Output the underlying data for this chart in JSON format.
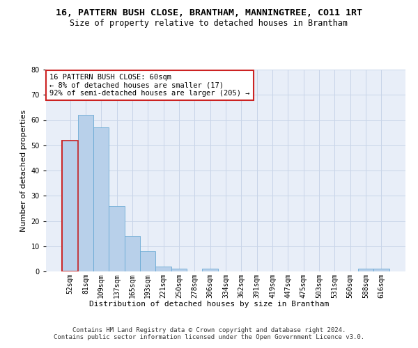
{
  "title_line1": "16, PATTERN BUSH CLOSE, BRANTHAM, MANNINGTREE, CO11 1RT",
  "title_line2": "Size of property relative to detached houses in Brantham",
  "xlabel": "Distribution of detached houses by size in Brantham",
  "ylabel": "Number of detached properties",
  "categories": [
    "52sqm",
    "81sqm",
    "109sqm",
    "137sqm",
    "165sqm",
    "193sqm",
    "221sqm",
    "250sqm",
    "278sqm",
    "306sqm",
    "334sqm",
    "362sqm",
    "391sqm",
    "419sqm",
    "447sqm",
    "475sqm",
    "503sqm",
    "531sqm",
    "560sqm",
    "588sqm",
    "616sqm"
  ],
  "values": [
    52,
    62,
    57,
    26,
    14,
    8,
    2,
    1,
    0,
    1,
    0,
    0,
    0,
    0,
    0,
    0,
    0,
    0,
    0,
    1,
    1
  ],
  "bar_color": "#b8d0ea",
  "bar_edgecolor": "#6aaad4",
  "annotation_box_text": "16 PATTERN BUSH CLOSE: 60sqm\n← 8% of detached houses are smaller (17)\n92% of semi-detached houses are larger (205) →",
  "annotation_box_edgecolor": "#cc2222",
  "annotation_box_facecolor": "#ffffff",
  "highlight_edgecolor": "#cc2222",
  "ylim": [
    0,
    80
  ],
  "yticks": [
    0,
    10,
    20,
    30,
    40,
    50,
    60,
    70,
    80
  ],
  "grid_color": "#c8d4e8",
  "background_color": "#e8eef8",
  "footer_line1": "Contains HM Land Registry data © Crown copyright and database right 2024.",
  "footer_line2": "Contains public sector information licensed under the Open Government Licence v3.0.",
  "title_fontsize": 9.5,
  "subtitle_fontsize": 8.5,
  "axis_label_fontsize": 8,
  "tick_fontsize": 7,
  "annotation_fontsize": 7.5,
  "footer_fontsize": 6.5
}
